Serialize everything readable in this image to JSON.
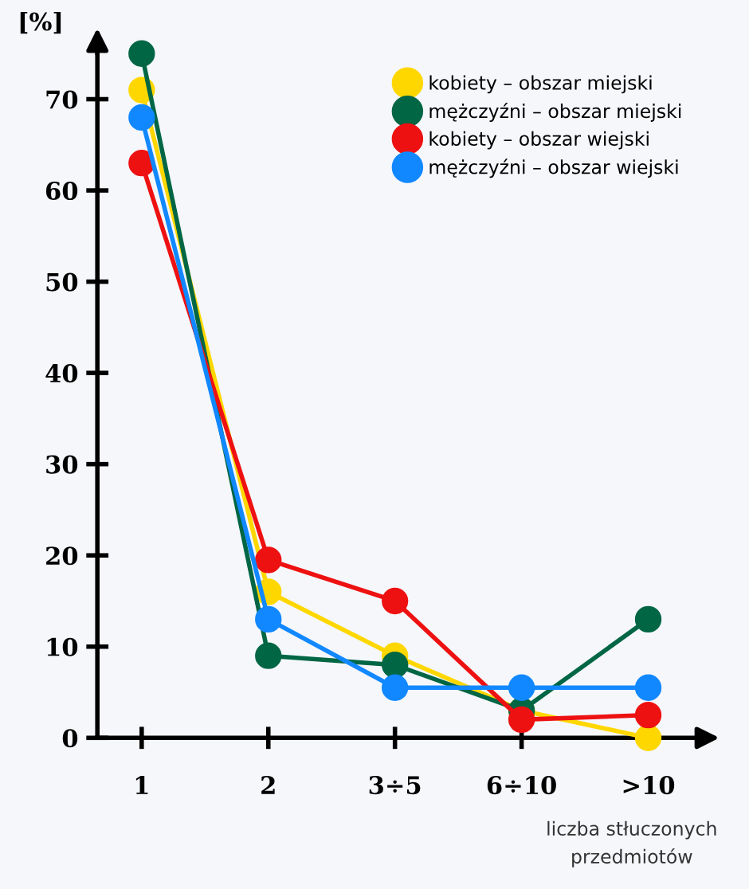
{
  "chart_data": {
    "type": "line",
    "ylabel": "[%]",
    "xlabel": "liczba stłuczonych\nprzedmiotów",
    "categories": [
      "1",
      "2",
      "3÷5",
      "6÷10",
      ">10"
    ],
    "series": [
      {
        "name": "kobiety – obszar miejski",
        "color": "#ffd700",
        "values": [
          71,
          16,
          9,
          3,
          0
        ]
      },
      {
        "name": "mężczyźni – obszar miejski",
        "color": "#006644",
        "values": [
          75,
          9,
          8,
          3,
          13
        ]
      },
      {
        "name": "kobiety – obszar wiejski",
        "color": "#ee1111",
        "values": [
          63,
          19.5,
          15,
          2,
          2.5
        ]
      },
      {
        "name": "mężczyźni – obszar wiejski",
        "color": "#1188ff",
        "values": [
          68,
          13,
          5.5,
          5.5,
          5.5
        ]
      }
    ],
    "ylim": [
      0,
      76
    ],
    "yticks": [
      0,
      10,
      20,
      30,
      40,
      50,
      60,
      70
    ],
    "grid": false,
    "legend": "top right",
    "marker": "circle",
    "line_style": "solid"
  }
}
